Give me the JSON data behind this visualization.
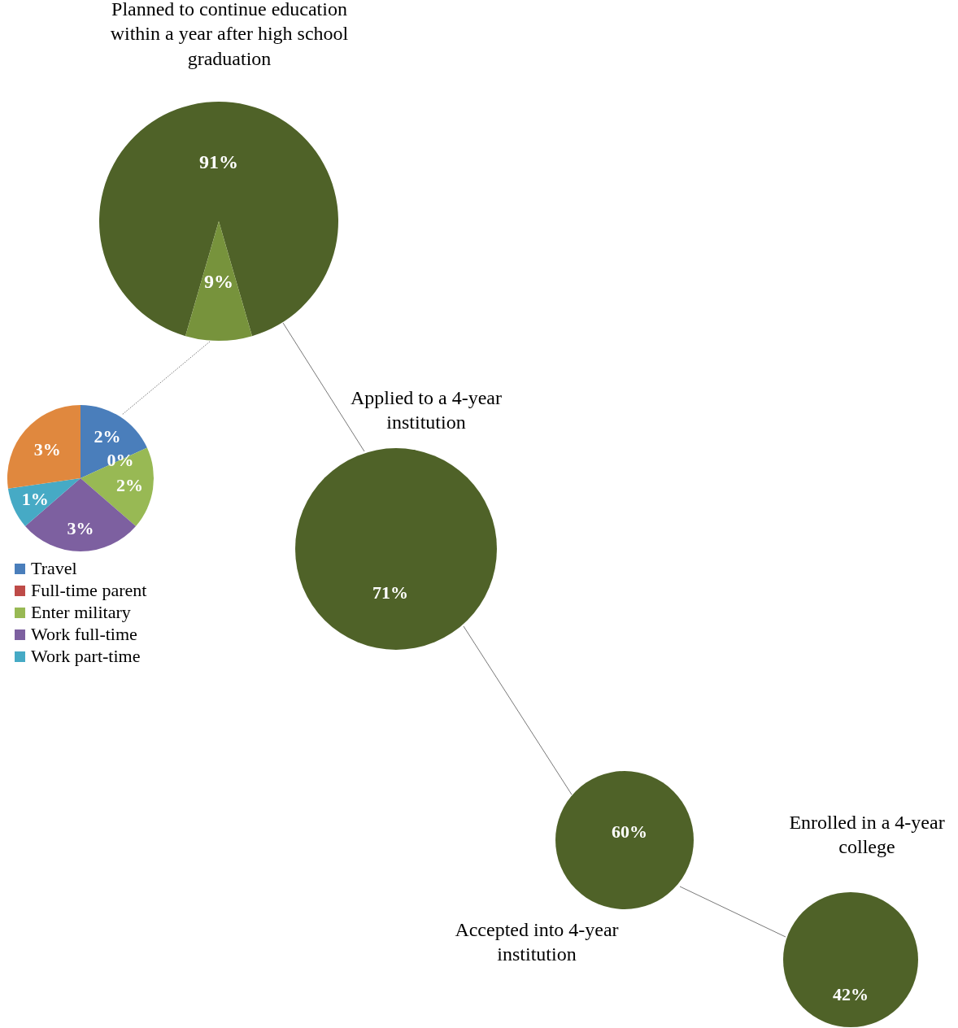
{
  "chart_data": [
    {
      "type": "pie",
      "title": "Planned to continue education within a year after high school graduation",
      "categories": [
        null,
        null
      ],
      "values": [
        91,
        9
      ],
      "colors": [
        "#4f6228",
        "#77933c"
      ],
      "value_labels": [
        "91%",
        "9%"
      ]
    },
    {
      "type": "pie",
      "categories": [
        "Travel",
        "Full-time parent",
        "Enter military",
        "Work full-time",
        "Work part-time",
        null
      ],
      "values": [
        2,
        0,
        2,
        3,
        1,
        3
      ],
      "colors": [
        "#4a7ebb",
        "#be4b48",
        "#98b954",
        "#7d60a0",
        "#46aac5",
        "#e0883e"
      ],
      "value_labels": [
        "2%",
        "0%",
        "2%",
        "3%",
        "1%",
        "3%"
      ],
      "legend": "bottom"
    },
    {
      "type": "other",
      "categories": [
        "Applied to a 4-year institution",
        "Accepted into 4-year institution",
        "Enrolled in a 4-year college"
      ],
      "values": [
        71,
        60,
        42
      ],
      "color": "#4f6228",
      "value_labels": [
        "71%",
        "60%",
        "42%"
      ]
    }
  ]
}
